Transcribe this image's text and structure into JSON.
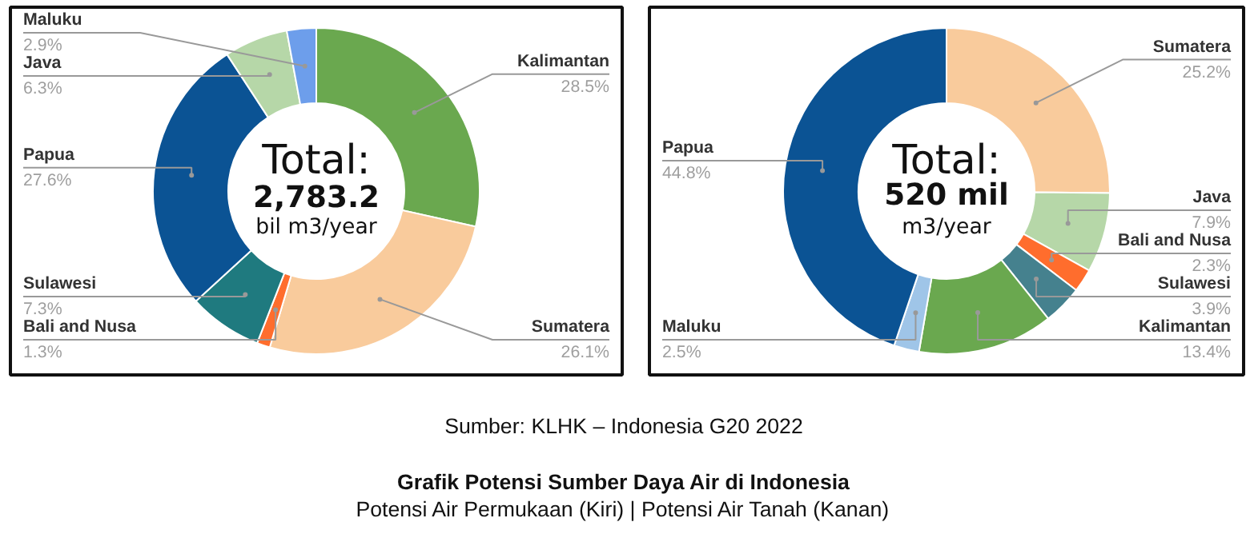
{
  "chart_data": [
    {
      "type": "donut",
      "categories": [
        "Kalimantan",
        "Sumatera",
        "Bali and Nusa",
        "Sulawesi",
        "Papua",
        "Java",
        "Maluku"
      ],
      "values": [
        28.5,
        26.1,
        1.3,
        7.3,
        27.6,
        6.3,
        2.9
      ],
      "value_labels": [
        "28.5%",
        "26.1%",
        "1.3%",
        "7.3%",
        "27.6%",
        "6.3%",
        "2.9%"
      ],
      "colors": [
        "#6aa84f",
        "#f9cb9c",
        "#ff6d2d",
        "#1f7a7f",
        "#0b5394",
        "#b6d7a8",
        "#6d9eeb"
      ],
      "annotations": [
        "Total:",
        "2,783.2",
        "bil m3/year"
      ]
    },
    {
      "type": "donut",
      "categories": [
        "Sumatera",
        "Java",
        "Bali and Nusa",
        "Sulawesi",
        "Kalimantan",
        "Maluku",
        "Papua"
      ],
      "values": [
        25.2,
        7.9,
        2.3,
        3.9,
        13.4,
        2.5,
        44.8
      ],
      "value_labels": [
        "25.2%",
        "7.9%",
        "2.3%",
        "3.9%",
        "13.4%",
        "2.5%",
        "44.8%"
      ],
      "colors": [
        "#f9cb9c",
        "#b6d7a8",
        "#ff6d2d",
        "#45818e",
        "#6aa84f",
        "#9fc5e8",
        "#0b5394"
      ],
      "annotations": [
        "Total:",
        "520 mil",
        "m3/year"
      ]
    },
    {
      "type": "other",
      "title": "Grafik Potensi Sumber Daya Air di Indonesia",
      "subtitle": "Potensi Air Permukaan (Kiri) | Potensi Air Tanah (Kanan)",
      "annotations": [
        "Sumber: KLHK – Indonesia G20 2022"
      ]
    }
  ]
}
